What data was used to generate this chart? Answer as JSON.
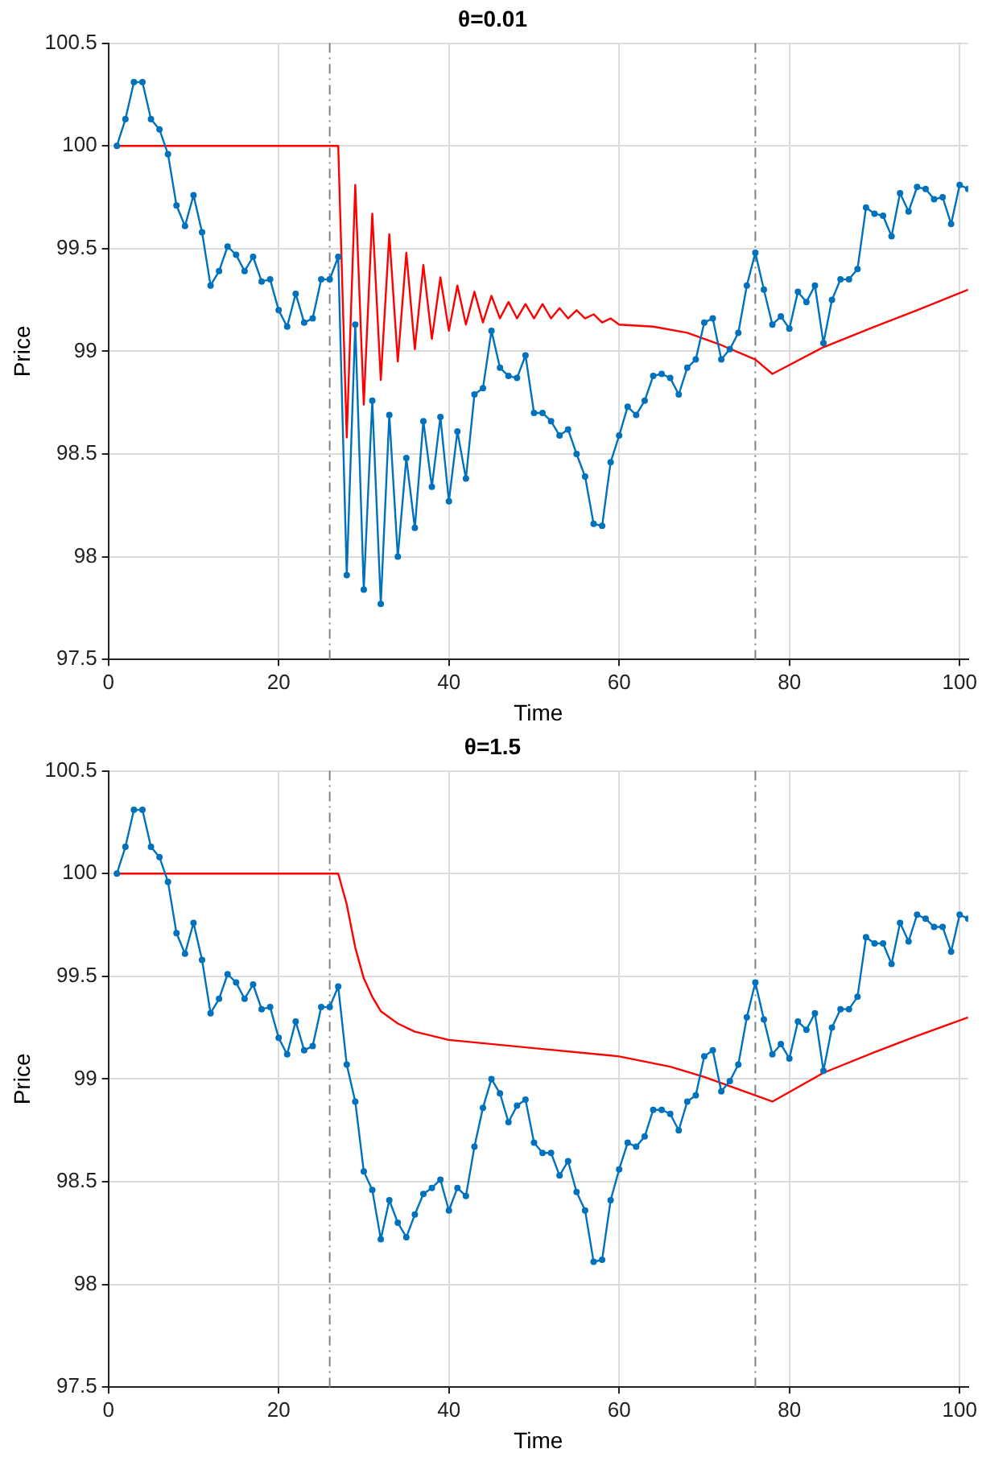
{
  "chart_data": [
    {
      "type": "line",
      "title": "θ=0.01",
      "xlabel": "Time",
      "ylabel": "Price",
      "x": [
        1,
        2,
        3,
        4,
        5,
        6,
        7,
        8,
        9,
        10,
        11,
        12,
        13,
        14,
        15,
        16,
        17,
        18,
        19,
        20,
        21,
        22,
        23,
        24,
        25,
        26,
        27,
        28,
        29,
        30,
        31,
        32,
        33,
        34,
        35,
        36,
        37,
        38,
        39,
        40,
        41,
        42,
        43,
        44,
        45,
        46,
        47,
        48,
        49,
        50,
        51,
        52,
        53,
        54,
        55,
        56,
        57,
        58,
        59,
        60,
        61,
        62,
        63,
        64,
        65,
        66,
        67,
        68,
        69,
        70,
        71,
        72,
        73,
        74,
        75,
        76,
        77,
        78,
        79,
        80,
        81,
        82,
        83,
        84,
        85,
        86,
        87,
        88,
        89,
        90,
        91,
        92,
        93,
        94,
        95,
        96,
        97,
        98,
        99,
        100,
        101
      ],
      "series": [
        {
          "color": "#0072bd",
          "marker": "circle",
          "values": [
            100,
            100.13,
            100.31,
            100.31,
            100.13,
            100.08,
            99.96,
            99.71,
            99.61,
            99.76,
            99.58,
            99.32,
            99.39,
            99.51,
            99.47,
            99.39,
            99.46,
            99.34,
            99.35,
            99.2,
            99.12,
            99.28,
            99.14,
            99.16,
            99.35,
            99.35,
            99.46,
            97.91,
            99.13,
            97.84,
            98.76,
            97.77,
            98.69,
            98,
            98.48,
            98.14,
            98.66,
            98.34,
            98.68,
            98.27,
            98.61,
            98.38,
            98.79,
            98.82,
            99.1,
            98.92,
            98.88,
            98.87,
            98.98,
            98.7,
            98.7,
            98.66,
            98.59,
            98.62,
            98.5,
            98.39,
            98.16,
            98.15,
            98.46,
            98.59,
            98.73,
            98.69,
            98.76,
            98.88,
            98.89,
            98.87,
            98.79,
            98.92,
            98.96,
            99.14,
            99.16,
            98.96,
            99.01,
            99.09,
            99.32,
            99.48,
            99.3,
            99.13,
            99.17,
            99.11,
            99.29,
            99.24,
            99.32,
            99.04,
            99.25,
            99.35,
            99.35,
            99.4,
            99.7,
            99.67,
            99.66,
            99.56,
            99.77,
            99.68,
            99.8,
            99.79,
            99.74,
            99.75,
            99.62,
            99.81,
            99.79
          ]
        },
        {
          "color": "#ff0000",
          "marker": "none",
          "x": [
            1,
            27,
            28,
            29,
            30,
            31,
            32,
            33,
            34,
            35,
            36,
            37,
            38,
            39,
            40,
            41,
            42,
            43,
            44,
            45,
            46,
            47,
            48,
            49,
            50,
            51,
            52,
            53,
            54,
            55,
            56,
            57,
            58,
            59,
            60,
            64,
            68,
            72,
            76,
            78,
            84,
            90,
            95,
            101
          ],
          "values": [
            100,
            100,
            98.58,
            99.81,
            98.74,
            99.67,
            98.86,
            99.57,
            98.95,
            99.48,
            99.01,
            99.42,
            99.06,
            99.36,
            99.1,
            99.32,
            99.13,
            99.29,
            99.14,
            99.27,
            99.16,
            99.24,
            99.16,
            99.23,
            99.16,
            99.23,
            99.16,
            99.21,
            99.16,
            99.2,
            99.16,
            99.18,
            99.14,
            99.16,
            99.13,
            99.12,
            99.09,
            99.03,
            98.96,
            98.89,
            99.02,
            99.12,
            99.2,
            99.3
          ]
        }
      ],
      "xlim": [
        0,
        101
      ],
      "xticks": [
        0,
        20,
        40,
        60,
        80,
        100
      ],
      "ylim": [
        97.5,
        100.5
      ],
      "yticks": [
        97.5,
        98,
        98.5,
        99,
        99.5,
        100,
        100.5
      ],
      "ref_lines": [
        {
          "axis": "x",
          "value": 26,
          "color": "#808080",
          "line_style": "dashed"
        },
        {
          "axis": "x",
          "value": 76,
          "color": "#808080",
          "line_style": "dashed"
        }
      ],
      "grid": true,
      "legend": false
    },
    {
      "type": "line",
      "title": "θ=1.5",
      "xlabel": "Time",
      "ylabel": "Price",
      "x": [
        1,
        2,
        3,
        4,
        5,
        6,
        7,
        8,
        9,
        10,
        11,
        12,
        13,
        14,
        15,
        16,
        17,
        18,
        19,
        20,
        21,
        22,
        23,
        24,
        25,
        26,
        27,
        28,
        29,
        30,
        31,
        32,
        33,
        34,
        35,
        36,
        37,
        38,
        39,
        40,
        41,
        42,
        43,
        44,
        45,
        46,
        47,
        48,
        49,
        50,
        51,
        52,
        53,
        54,
        55,
        56,
        57,
        58,
        59,
        60,
        61,
        62,
        63,
        64,
        65,
        66,
        67,
        68,
        69,
        70,
        71,
        72,
        73,
        74,
        75,
        76,
        77,
        78,
        79,
        80,
        81,
        82,
        83,
        84,
        85,
        86,
        87,
        88,
        89,
        90,
        91,
        92,
        93,
        94,
        95,
        96,
        97,
        98,
        99,
        100,
        101
      ],
      "series": [
        {
          "color": "#0072bd",
          "marker": "circle",
          "values": [
            100,
            100.13,
            100.31,
            100.31,
            100.13,
            100.08,
            99.96,
            99.71,
            99.61,
            99.76,
            99.58,
            99.32,
            99.39,
            99.51,
            99.47,
            99.39,
            99.46,
            99.34,
            99.35,
            99.2,
            99.12,
            99.28,
            99.14,
            99.16,
            99.35,
            99.35,
            99.45,
            99.07,
            98.89,
            98.55,
            98.46,
            98.22,
            98.41,
            98.3,
            98.23,
            98.34,
            98.44,
            98.47,
            98.51,
            98.36,
            98.47,
            98.43,
            98.67,
            98.86,
            99,
            98.93,
            98.79,
            98.87,
            98.9,
            98.69,
            98.64,
            98.64,
            98.53,
            98.6,
            98.45,
            98.36,
            98.11,
            98.12,
            98.41,
            98.56,
            98.69,
            98.67,
            98.72,
            98.85,
            98.85,
            98.83,
            98.75,
            98.89,
            98.92,
            99.11,
            99.14,
            98.94,
            98.99,
            99.07,
            99.3,
            99.47,
            99.29,
            99.12,
            99.17,
            99.1,
            99.28,
            99.24,
            99.32,
            99.04,
            99.25,
            99.34,
            99.34,
            99.4,
            99.69,
            99.66,
            99.66,
            99.56,
            99.76,
            99.67,
            99.8,
            99.78,
            99.74,
            99.74,
            99.62,
            99.8,
            99.78
          ]
        },
        {
          "color": "#ff0000",
          "marker": "none",
          "x": [
            1,
            27,
            28,
            29,
            30,
            31,
            32,
            34,
            36,
            40,
            50,
            60,
            66,
            70,
            74,
            78,
            84,
            90,
            95,
            101
          ],
          "values": [
            100,
            100,
            99.85,
            99.64,
            99.49,
            99.4,
            99.33,
            99.27,
            99.23,
            99.19,
            99.15,
            99.11,
            99.06,
            99.01,
            98.95,
            98.89,
            99.03,
            99.13,
            99.21,
            99.3
          ]
        }
      ],
      "xlim": [
        0,
        101
      ],
      "xticks": [
        0,
        20,
        40,
        60,
        80,
        100
      ],
      "ylim": [
        97.5,
        100.5
      ],
      "yticks": [
        97.5,
        98,
        98.5,
        99,
        99.5,
        100,
        100.5
      ],
      "ref_lines": [
        {
          "axis": "x",
          "value": 26,
          "color": "#808080",
          "line_style": "dashed"
        },
        {
          "axis": "x",
          "value": 76,
          "color": "#808080",
          "line_style": "dashed"
        }
      ],
      "grid": true,
      "legend": false
    }
  ]
}
